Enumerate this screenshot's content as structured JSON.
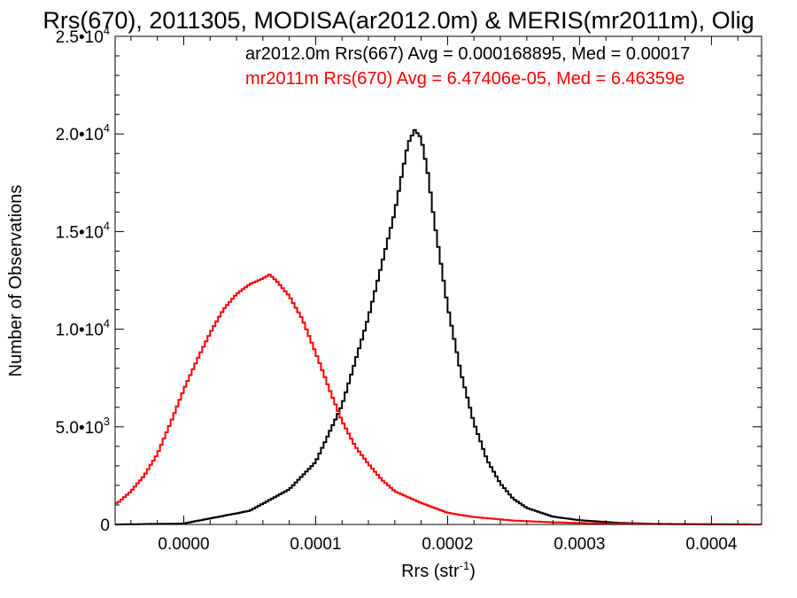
{
  "chart_data": {
    "type": "line",
    "title": "Rrs(670), 2011305, MODISA(ar2012.0m) & MERIS(mr2011m), Olig",
    "xlabel": "Rrs (str",
    "xlabel_sup": "-1",
    "xlabel_end": ")",
    "ylabel": "Number of Observations",
    "xlim": [
      -5.2e-05,
      0.000438
    ],
    "ylim": [
      0,
      25000
    ],
    "x_ticks": [
      {
        "value": 0.0,
        "label": "0.0000"
      },
      {
        "value": 0.0001,
        "label": "0.0001"
      },
      {
        "value": 0.0002,
        "label": "0.0002"
      },
      {
        "value": 0.0003,
        "label": "0.0003"
      },
      {
        "value": 0.0004,
        "label": "0.0004"
      }
    ],
    "y_ticks": [
      {
        "value": 0,
        "mant": "0",
        "exp": ""
      },
      {
        "value": 5000,
        "mant": "5.0•10",
        "exp": "3"
      },
      {
        "value": 10000,
        "mant": "1.0•10",
        "exp": "4"
      },
      {
        "value": 15000,
        "mant": "1.5•10",
        "exp": "4"
      },
      {
        "value": 20000,
        "mant": "2.0•10",
        "exp": "4"
      },
      {
        "value": 25000,
        "mant": "2.5•10",
        "exp": "4"
      }
    ],
    "grid": false,
    "legend_position": "top-right",
    "series": [
      {
        "name": "ar2012.0m Rrs(667) Avg = 0.000168895, Med = 0.00017",
        "color": "#000000",
        "x": [
          -5e-05,
          0.0,
          5e-05,
          8e-05,
          0.0001,
          0.00012,
          0.00014,
          0.00015,
          0.00016,
          0.000165,
          0.00017,
          0.000175,
          0.00018,
          0.000185,
          0.00019,
          0.0002,
          0.00021,
          0.00022,
          0.00023,
          0.00024,
          0.00025,
          0.00026,
          0.00028,
          0.0003,
          0.00033,
          0.00036,
          0.0004,
          0.00044
        ],
        "y": [
          0,
          50,
          700,
          1800,
          3200,
          6100,
          10600,
          13300,
          16000,
          17800,
          19500,
          20200,
          19800,
          18000,
          15500,
          11200,
          7800,
          5200,
          3300,
          2100,
          1300,
          850,
          400,
          220,
          80,
          30,
          10,
          0
        ]
      },
      {
        "name": "mr2011m Rrs(670) Avg = 6.47406e-05, Med = 6.46359e",
        "color": "#ff0000",
        "x": [
          -5e-05,
          -4e-05,
          -3e-05,
          -2e-05,
          -1e-05,
          0.0,
          1e-05,
          2e-05,
          3e-05,
          4e-05,
          5e-05,
          6e-05,
          6.5e-05,
          7e-05,
          8e-05,
          9e-05,
          0.0001,
          0.00011,
          0.00012,
          0.00013,
          0.00014,
          0.00015,
          0.00016,
          0.00018,
          0.0002,
          0.00022,
          0.00025,
          0.00028,
          0.00031,
          0.00034,
          0.00038,
          0.00044
        ],
        "y": [
          1100,
          1700,
          2500,
          3600,
          5200,
          6900,
          8400,
          9800,
          11000,
          11800,
          12300,
          12600,
          12800,
          12500,
          11700,
          10500,
          8800,
          7000,
          5300,
          4000,
          3100,
          2300,
          1700,
          1100,
          600,
          380,
          200,
          110,
          60,
          30,
          10,
          0
        ]
      }
    ]
  }
}
